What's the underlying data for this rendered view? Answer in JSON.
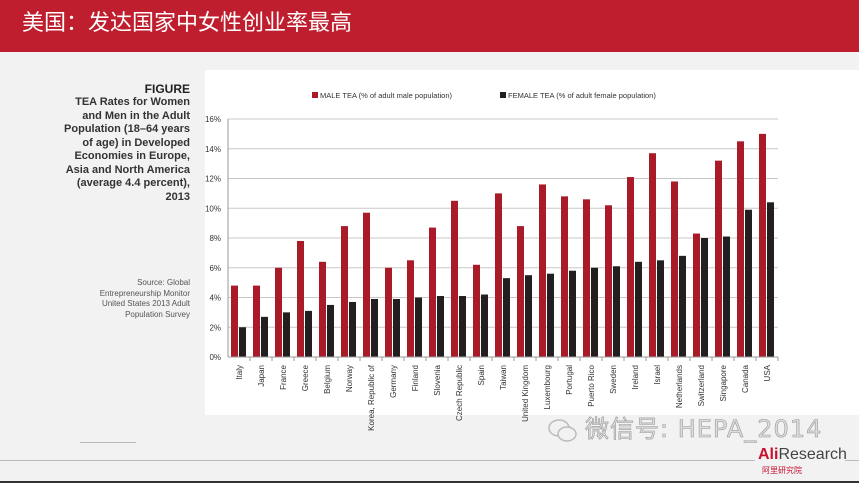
{
  "header": {
    "title": "美国：发达国家中女性创业率最高"
  },
  "caption": {
    "figure": "FIGURE",
    "text": "TEA Rates for Women and Men in the Adult Population (18–64 years of age) in Developed Economies in Europe, Asia and North America (average 4.4 percent), 2013",
    "source": "Source: Global Entrepreneurship Monitor United States 2013 Adult Population Survey"
  },
  "watermark": {
    "text": "微信号: HEPA_2014",
    "icon": "wechat-icon"
  },
  "logo": {
    "brand_prefix": "Ali",
    "brand_suffix": "Research",
    "subtitle": "阿里研究院"
  },
  "colors": {
    "header": "#bf1e2e",
    "male": "#a91b29",
    "female": "#231f20"
  },
  "chart_data": {
    "type": "bar",
    "title": "",
    "xlabel": "",
    "ylabel": "",
    "ylim": [
      0,
      16
    ],
    "yticks": [
      "0%",
      "2%",
      "4%",
      "6%",
      "8%",
      "10%",
      "12%",
      "14%",
      "16%"
    ],
    "grid": true,
    "legend_position": "top",
    "categories": [
      "Italy",
      "Japan",
      "France",
      "Greece",
      "Belgium",
      "Norway",
      "Korea, Republic of",
      "Germany",
      "Finland",
      "Slovenia",
      "Czech Republic",
      "Spain",
      "Taiwan",
      "United Kingdom",
      "Luxembourg",
      "Portugal",
      "Puerto Rico",
      "Sweden",
      "Ireland",
      "Israel",
      "Netherlands",
      "Switzerland",
      "Singapore",
      "Canada",
      "USA"
    ],
    "series": [
      {
        "name": "MALE TEA (% of adult male population)",
        "color": "#a91b29",
        "values": [
          4.8,
          4.8,
          6.0,
          7.8,
          6.4,
          8.8,
          9.7,
          6.0,
          6.5,
          8.7,
          10.5,
          6.2,
          11.0,
          8.8,
          11.6,
          10.8,
          10.6,
          10.2,
          12.1,
          13.7,
          11.8,
          8.3,
          13.2,
          14.5,
          15.0
        ]
      },
      {
        "name": "FEMALE TEA (% of adult female population)",
        "color": "#231f20",
        "values": [
          2.0,
          2.7,
          3.0,
          3.1,
          3.5,
          3.7,
          3.9,
          3.9,
          4.0,
          4.1,
          4.1,
          4.2,
          5.3,
          5.5,
          5.6,
          5.8,
          6.0,
          6.1,
          6.4,
          6.5,
          6.8,
          8.0,
          8.1,
          9.9,
          10.4
        ]
      }
    ]
  }
}
